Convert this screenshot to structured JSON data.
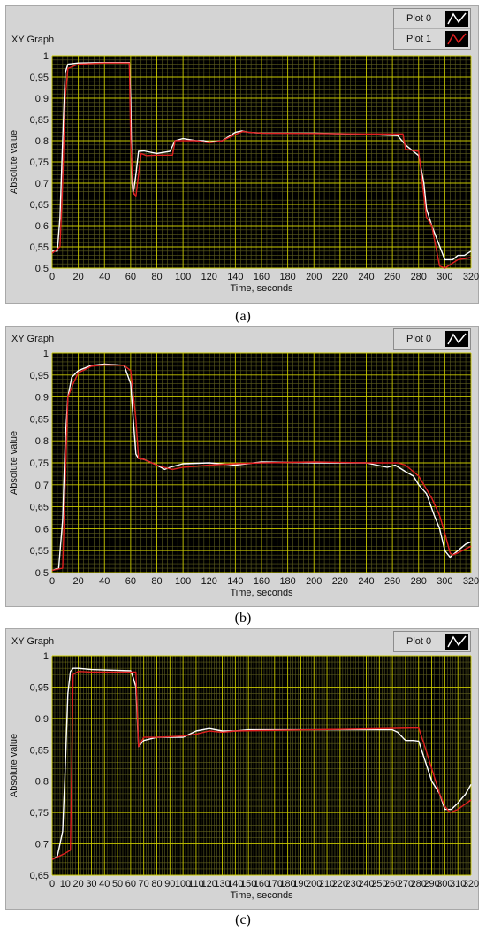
{
  "charts": [
    {
      "title": "XY Graph",
      "caption": "(a)",
      "legend": [
        "Plot 0",
        "Plot 1"
      ]
    },
    {
      "title": "XY Graph",
      "caption": "(b)",
      "legend": [
        "Plot 0"
      ]
    },
    {
      "title": "XY Graph",
      "caption": "(c)",
      "legend": [
        "Plot 0"
      ]
    }
  ],
  "colors": {
    "plot_bg": "#000000",
    "grid": "#c8c800",
    "grid_minor": "#5e5e1e",
    "white_series": "#ffffff",
    "red_series": "#e02020"
  },
  "chart_data": [
    {
      "type": "line",
      "title": "XY Graph",
      "xlabel": "Time, seconds",
      "ylabel": "Absolute value",
      "xlim": [
        0,
        320
      ],
      "ylim": [
        0.5,
        1
      ],
      "xticks": [
        0,
        20,
        40,
        60,
        80,
        100,
        120,
        140,
        160,
        180,
        200,
        220,
        240,
        260,
        280,
        300,
        320
      ],
      "yticks": [
        "0,5",
        "0,55",
        "0,6",
        "0,65",
        "0,7",
        "0,75",
        "0,8",
        "0,85",
        "0,9",
        "0,95",
        "1"
      ],
      "grid": true,
      "legend_position": "top-right",
      "series": [
        {
          "name": "Plot 0",
          "color": "#ffffff",
          "x": [
            0,
            4,
            6,
            8,
            10,
            12,
            20,
            40,
            59,
            60,
            61,
            62,
            64,
            66,
            70,
            80,
            90,
            94,
            100,
            110,
            116,
            120,
            130,
            140,
            145,
            150,
            160,
            200,
            240,
            264,
            270,
            276,
            280,
            284,
            286,
            290,
            295,
            300,
            306,
            310,
            315,
            320
          ],
          "y": [
            0.54,
            0.54,
            0.62,
            0.8,
            0.96,
            0.98,
            0.983,
            0.984,
            0.984,
            0.9,
            0.7,
            0.675,
            0.72,
            0.775,
            0.776,
            0.77,
            0.775,
            0.8,
            0.805,
            0.8,
            0.8,
            0.797,
            0.8,
            0.82,
            0.823,
            0.82,
            0.818,
            0.818,
            0.815,
            0.812,
            0.79,
            0.775,
            0.765,
            0.7,
            0.64,
            0.6,
            0.56,
            0.52,
            0.52,
            0.53,
            0.53,
            0.54
          ]
        },
        {
          "name": "Plot 1",
          "color": "#e02020",
          "x": [
            0,
            6,
            8,
            10,
            12,
            20,
            40,
            59,
            60,
            62,
            64,
            68,
            72,
            80,
            92,
            94,
            100,
            110,
            120,
            130,
            140,
            146,
            150,
            160,
            200,
            240,
            268,
            270,
            280,
            286,
            290,
            296,
            300,
            310,
            320
          ],
          "y": [
            0.535,
            0.55,
            0.7,
            0.9,
            0.97,
            0.98,
            0.983,
            0.983,
            0.8,
            0.68,
            0.668,
            0.77,
            0.765,
            0.766,
            0.766,
            0.8,
            0.8,
            0.8,
            0.795,
            0.8,
            0.815,
            0.822,
            0.82,
            0.818,
            0.817,
            0.816,
            0.816,
            0.78,
            0.775,
            0.62,
            0.6,
            0.505,
            0.5,
            0.52,
            0.525
          ]
        }
      ]
    },
    {
      "type": "line",
      "title": "XY Graph",
      "xlabel": "Time, seconds",
      "ylabel": "Absolute value",
      "xlim": [
        0,
        320
      ],
      "ylim": [
        0.5,
        1
      ],
      "xticks": [
        0,
        20,
        40,
        60,
        80,
        100,
        120,
        140,
        160,
        180,
        200,
        220,
        240,
        260,
        280,
        300,
        320
      ],
      "yticks": [
        "0,5",
        "0,55",
        "0,6",
        "0,65",
        "0,7",
        "0,75",
        "0,8",
        "0,85",
        "0,9",
        "0,95",
        "1"
      ],
      "grid": true,
      "legend_position": "top-right",
      "series": [
        {
          "name": "Plot 0",
          "color": "#ffffff",
          "x": [
            0,
            5,
            8,
            10,
            12,
            15,
            20,
            30,
            40,
            55,
            60,
            62,
            64,
            66,
            70,
            80,
            86,
            90,
            100,
            120,
            140,
            160,
            200,
            240,
            256,
            262,
            270,
            276,
            280,
            286,
            292,
            296,
            300,
            304,
            310,
            316,
            320
          ],
          "y": [
            0.505,
            0.51,
            0.62,
            0.8,
            0.9,
            0.945,
            0.96,
            0.972,
            0.975,
            0.972,
            0.93,
            0.85,
            0.77,
            0.76,
            0.758,
            0.745,
            0.735,
            0.74,
            0.748,
            0.75,
            0.745,
            0.752,
            0.75,
            0.75,
            0.74,
            0.745,
            0.73,
            0.72,
            0.7,
            0.68,
            0.63,
            0.6,
            0.55,
            0.535,
            0.55,
            0.565,
            0.57
          ]
        },
        {
          "name": "",
          "color": "#e02020",
          "x": [
            0,
            8,
            10,
            12,
            16,
            20,
            30,
            40,
            55,
            60,
            64,
            66,
            70,
            80,
            88,
            92,
            100,
            120,
            140,
            160,
            200,
            240,
            264,
            270,
            280,
            290,
            296,
            300,
            304,
            306,
            310,
            320
          ],
          "y": [
            0.505,
            0.51,
            0.7,
            0.9,
            0.93,
            0.955,
            0.97,
            0.973,
            0.972,
            0.96,
            0.85,
            0.76,
            0.758,
            0.745,
            0.738,
            0.735,
            0.74,
            0.745,
            0.748,
            0.75,
            0.752,
            0.75,
            0.75,
            0.745,
            0.72,
            0.67,
            0.63,
            0.59,
            0.545,
            0.54,
            0.545,
            0.56
          ]
        }
      ]
    },
    {
      "type": "line",
      "title": "XY Graph",
      "xlabel": "Time, seconds",
      "ylabel": "Absolute value",
      "xlim": [
        0,
        320
      ],
      "ylim": [
        0.65,
        1
      ],
      "xticks": [
        0,
        10,
        20,
        30,
        40,
        50,
        60,
        70,
        80,
        90,
        100,
        110,
        120,
        130,
        140,
        150,
        160,
        170,
        180,
        190,
        200,
        210,
        220,
        230,
        240,
        250,
        260,
        270,
        280,
        290,
        300,
        310,
        320
      ],
      "yticks": [
        "0,65",
        "0,7",
        "0,75",
        "0,8",
        "0,85",
        "0,9",
        "0,95",
        "1"
      ],
      "grid": true,
      "legend_position": "top-right",
      "series": [
        {
          "name": "Plot 0",
          "color": "#ffffff",
          "x": [
            0,
            4,
            8,
            10,
            12,
            14,
            16,
            20,
            30,
            60,
            62,
            64,
            66,
            70,
            80,
            100,
            110,
            120,
            130,
            140,
            150,
            200,
            260,
            264,
            270,
            276,
            280,
            290,
            296,
            300,
            305,
            310,
            316,
            320
          ],
          "y": [
            0.675,
            0.68,
            0.72,
            0.82,
            0.94,
            0.975,
            0.98,
            0.98,
            0.978,
            0.976,
            0.965,
            0.95,
            0.855,
            0.865,
            0.87,
            0.87,
            0.88,
            0.884,
            0.88,
            0.88,
            0.882,
            0.882,
            0.882,
            0.878,
            0.865,
            0.865,
            0.864,
            0.8,
            0.78,
            0.755,
            0.755,
            0.765,
            0.78,
            0.795
          ]
        },
        {
          "name": "",
          "color": "#e02020",
          "x": [
            0,
            10,
            14,
            16,
            20,
            30,
            64,
            66,
            70,
            80,
            100,
            110,
            120,
            130,
            140,
            200,
            280,
            284,
            290,
            296,
            300,
            304,
            310,
            320
          ],
          "y": [
            0.675,
            0.685,
            0.69,
            0.97,
            0.975,
            0.974,
            0.974,
            0.855,
            0.87,
            0.87,
            0.872,
            0.875,
            0.88,
            0.878,
            0.88,
            0.882,
            0.885,
            0.86,
            0.82,
            0.78,
            0.76,
            0.75,
            0.755,
            0.77
          ]
        }
      ]
    }
  ]
}
